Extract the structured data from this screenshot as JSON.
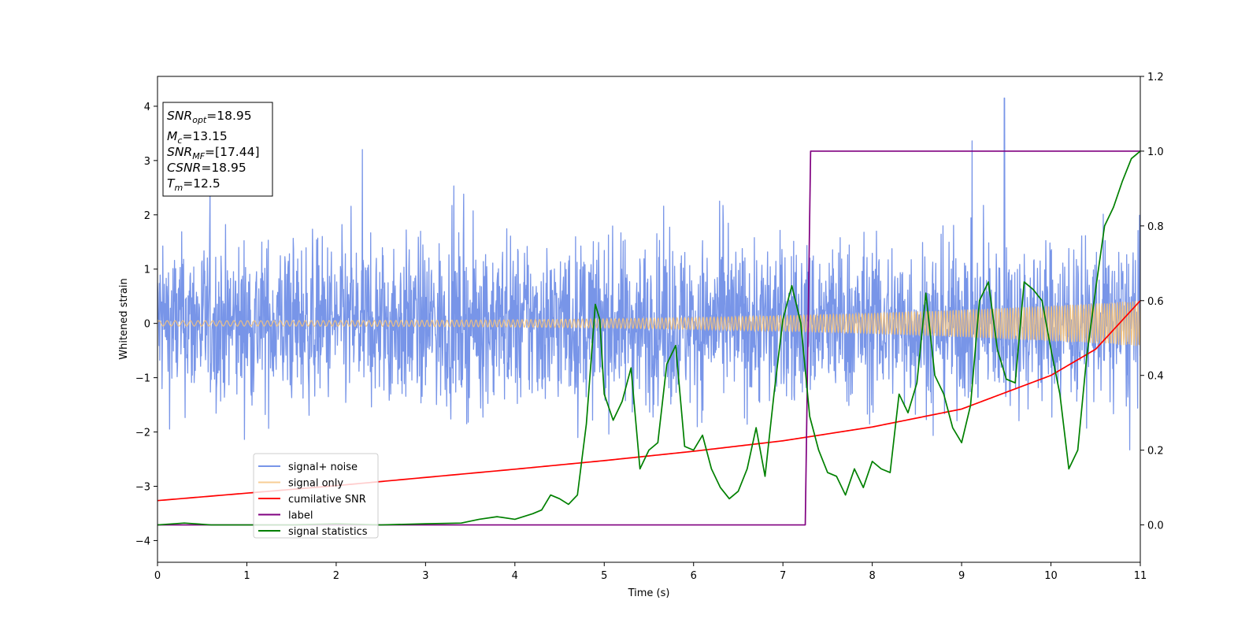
{
  "chart_data": {
    "type": "line",
    "xlabel": "Time (s)",
    "ylabel": "Whitened strain",
    "xlim": [
      0,
      11
    ],
    "ylim_left": [
      -4.4,
      4.55
    ],
    "ylim_right": [
      -0.1,
      1.2
    ],
    "xticks": [
      "0",
      "1",
      "2",
      "3",
      "4",
      "5",
      "6",
      "7",
      "8",
      "9",
      "10",
      "11"
    ],
    "yticks_left": [
      "−4",
      "−3",
      "−2",
      "−1",
      "0",
      "1",
      "2",
      "3",
      "4"
    ],
    "yticks_right": [
      "0.0",
      "0.2",
      "0.4",
      "0.6",
      "0.8",
      "1.0",
      "1.2"
    ],
    "grid": false,
    "legend_position": "lower-left",
    "series": [
      {
        "name": "signal+ noise",
        "axis": "left",
        "color": "#7895e8",
        "description": "dense noisy trace, approx. -2.2 to 2.2 band, peaks up to 4.15 near t=9.48"
      },
      {
        "name": "signal only",
        "axis": "left",
        "color": "#f5c27a",
        "description": "chirp oscillation, amplitude growing from 0.05 to 0.42"
      },
      {
        "name": "cumilative SNR",
        "axis": "right",
        "color": "#ff0000",
        "x": [
          0,
          1,
          2,
          3,
          4,
          5,
          6,
          7,
          8,
          9,
          10,
          10.5,
          11
        ],
        "y": [
          0.065,
          0.085,
          0.105,
          0.127,
          0.149,
          0.172,
          0.197,
          0.225,
          0.262,
          0.31,
          0.4,
          0.47,
          0.6
        ]
      },
      {
        "name": "label",
        "axis": "right",
        "color": "#800080",
        "x": [
          0,
          7.25,
          7.31,
          11
        ],
        "y": [
          0,
          0,
          1,
          1
        ]
      },
      {
        "name": "signal statistics",
        "axis": "right",
        "color": "#008000",
        "x": [
          0,
          0.3,
          0.6,
          1,
          1.5,
          2,
          2.5,
          3,
          3.4,
          3.6,
          3.8,
          4.0,
          4.2,
          4.3,
          4.4,
          4.5,
          4.6,
          4.7,
          4.8,
          4.9,
          4.95,
          5.0,
          5.1,
          5.2,
          5.3,
          5.4,
          5.5,
          5.6,
          5.7,
          5.8,
          5.9,
          6.0,
          6.1,
          6.2,
          6.3,
          6.4,
          6.5,
          6.6,
          6.7,
          6.8,
          6.9,
          7.0,
          7.1,
          7.2,
          7.3,
          7.4,
          7.5,
          7.6,
          7.7,
          7.8,
          7.9,
          8.0,
          8.1,
          8.2,
          8.3,
          8.4,
          8.5,
          8.6,
          8.7,
          8.8,
          8.9,
          9.0,
          9.1,
          9.2,
          9.3,
          9.4,
          9.5,
          9.6,
          9.7,
          9.8,
          9.9,
          10.0,
          10.1,
          10.2,
          10.3,
          10.4,
          10.5,
          10.6,
          10.7,
          10.8,
          10.9,
          11.0
        ],
        "y": [
          0,
          0.005,
          0,
          0,
          0,
          0.003,
          0,
          0.003,
          0.005,
          0.015,
          0.022,
          0.015,
          0.03,
          0.04,
          0.08,
          0.07,
          0.055,
          0.08,
          0.27,
          0.59,
          0.55,
          0.35,
          0.28,
          0.33,
          0.42,
          0.15,
          0.2,
          0.22,
          0.43,
          0.48,
          0.21,
          0.2,
          0.24,
          0.15,
          0.1,
          0.07,
          0.09,
          0.15,
          0.26,
          0.13,
          0.35,
          0.55,
          0.64,
          0.54,
          0.29,
          0.2,
          0.14,
          0.13,
          0.08,
          0.15,
          0.1,
          0.17,
          0.15,
          0.14,
          0.35,
          0.3,
          0.38,
          0.62,
          0.4,
          0.35,
          0.26,
          0.22,
          0.32,
          0.6,
          0.65,
          0.47,
          0.39,
          0.38,
          0.65,
          0.63,
          0.6,
          0.47,
          0.35,
          0.15,
          0.2,
          0.45,
          0.63,
          0.8,
          0.85,
          0.92,
          0.98,
          1.0
        ]
      }
    ]
  },
  "info_box": {
    "line1_main": "SNR",
    "line1_sub": "opt",
    "line1_rest": "=18.95",
    "line2_main": "M",
    "line2_sub": "c",
    "line2_rest": "=13.15",
    "line3_main": "SNR",
    "line3_sub": "MF",
    "line3_rest": "=[17.44]",
    "line4_main": "CSNR",
    "line4_rest": "=18.95",
    "line5_main": "T",
    "line5_sub": "m",
    "line5_rest": "=12.5"
  }
}
